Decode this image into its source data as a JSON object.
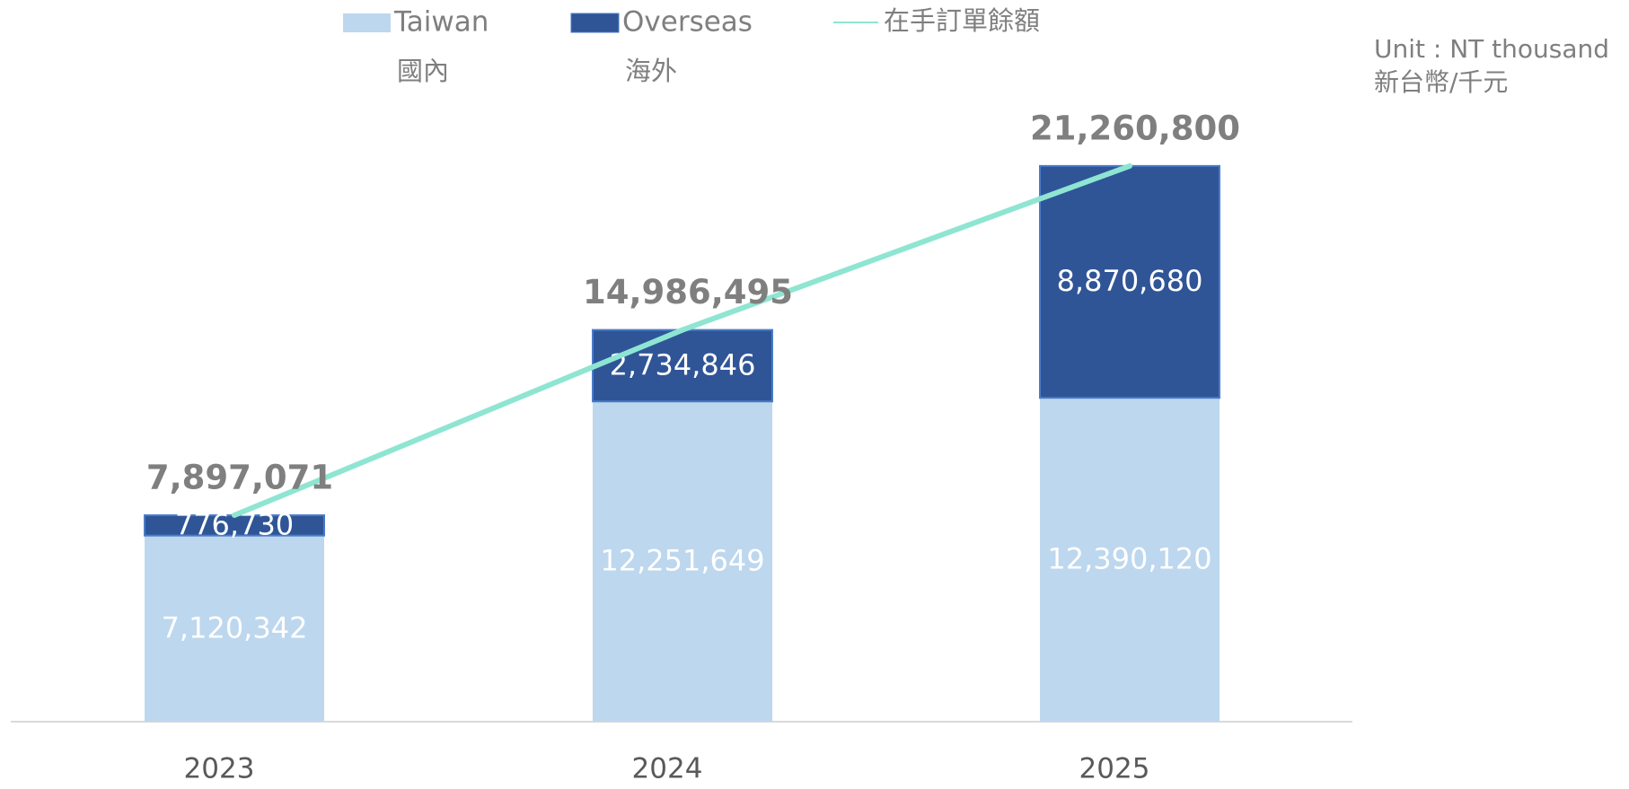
{
  "chart_data": {
    "type": "stacked_bar_line",
    "unit_note": [
      "Unit : NT thousand",
      "新台幣/千元"
    ],
    "categories": [
      "2023",
      "2024",
      "2025"
    ],
    "ylim": [
      0,
      25000000
    ],
    "series": [
      {
        "name": "Taiwan",
        "name_zh": "國內",
        "color": "#bdd7ee",
        "label_color": "#ffffff",
        "values": [
          7120342,
          12251649,
          12390120
        ],
        "value_labels": [
          "7,120,342",
          "12,251,649",
          "12,390,120"
        ]
      },
      {
        "name": "Overseas",
        "name_zh": "海外",
        "color": "#2f5597",
        "label_color": "#ffffff",
        "values": [
          776730,
          2734846,
          8870680
        ],
        "value_labels": [
          "776,730",
          "2,734,846",
          "8,870,680"
        ]
      }
    ],
    "line": {
      "name": "在手訂單餘額",
      "color": "#8ee5d2",
      "values": [
        7897071,
        14986495,
        21260800
      ],
      "value_labels": [
        "7,897,071",
        "14,986,495",
        "21,260,800"
      ]
    }
  }
}
